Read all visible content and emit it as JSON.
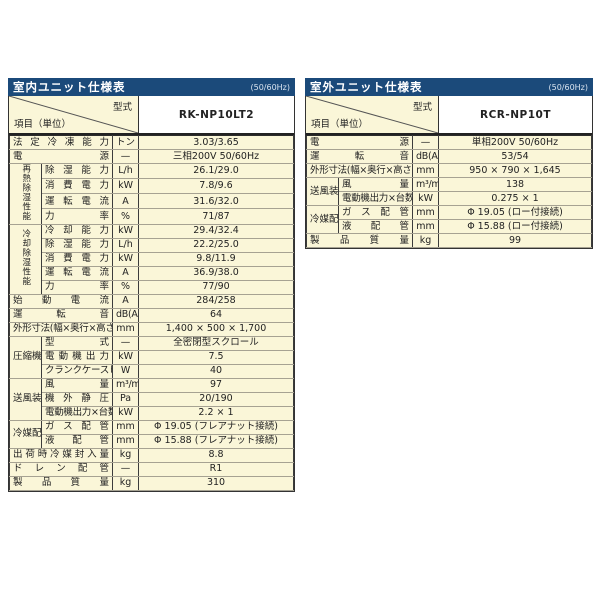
{
  "colors": {
    "header_bg": "#1b4a7a",
    "header_text": "#ffffff",
    "cell_bg": "#faf6d8",
    "value_bg": "#ffffff",
    "border_dark": "#333333"
  },
  "tables": [
    {
      "title": "室内ユニット仕様表",
      "freq": "(50/60Hz)",
      "model_label": "型式",
      "item_label": "項目（単位）",
      "model": "RK-NP10LT2",
      "rows": [
        {
          "label": "法定冷凍能力",
          "unit": "トン",
          "value": "3.03/3.65"
        },
        {
          "label": "電源",
          "unit": "—",
          "value": "三相200V 50/60Hz"
        },
        {
          "group": "再熱除湿性能",
          "gspan": 4,
          "gvert": true,
          "label": "除湿能力",
          "unit": "L/h",
          "value": "26.1/29.0"
        },
        {
          "label": "消費電力",
          "unit": "kW",
          "value": "7.8/9.6"
        },
        {
          "label": "運転電流",
          "unit": "A",
          "value": "31.6/32.0"
        },
        {
          "label": "力率",
          "unit": "%",
          "value": "71/87"
        },
        {
          "group": "冷却除湿性能",
          "gspan": 5,
          "gvert": true,
          "label": "冷却能力",
          "unit": "kW",
          "value": "29.4/32.4"
        },
        {
          "label": "除湿能力",
          "unit": "L/h",
          "value": "22.2/25.0"
        },
        {
          "label": "消費電力",
          "unit": "kW",
          "value": "9.8/11.9"
        },
        {
          "label": "運転電流",
          "unit": "A",
          "value": "36.9/38.0"
        },
        {
          "label": "力率",
          "unit": "%",
          "value": "77/90"
        },
        {
          "label": "始動電流",
          "unit": "A",
          "value": "284/258"
        },
        {
          "label": "運転音",
          "unit": "dB(A)",
          "value": "64"
        },
        {
          "label": "外形寸法(幅×奥行×高さ)",
          "fit": true,
          "unit": "mm",
          "value": "1,400 × 500 × 1,700"
        },
        {
          "group": "圧縮機",
          "gspan": 3,
          "label": "型式",
          "unit": "—",
          "value": "全密閉型スクロール"
        },
        {
          "label": "電動機出力",
          "unit": "kW",
          "value": "7.5"
        },
        {
          "label": "クランクケースヒーター",
          "fit": true,
          "unit": "W",
          "value": "40"
        },
        {
          "group": "送風装置",
          "gspan": 3,
          "label": "風量",
          "unit": "m³/min",
          "value": "97"
        },
        {
          "label": "機外静圧",
          "unit": "Pa",
          "value": "20/190"
        },
        {
          "label": "電動機出力×台数",
          "fit": true,
          "unit": "kW",
          "value": "2.2 × 1"
        },
        {
          "group": "冷媒配管",
          "gspan": 2,
          "label": "ガス配管",
          "unit": "mm",
          "value": "Φ 19.05 (フレアナット接続)"
        },
        {
          "label": "液配管",
          "unit": "mm",
          "value": "Φ 15.88 (フレアナット接続)"
        },
        {
          "label": "出荷時冷媒封入量",
          "unit": "kg",
          "value": "8.8"
        },
        {
          "label": "ドレン配管",
          "unit": "—",
          "value": "R1"
        },
        {
          "label": "製品質量",
          "unit": "kg",
          "value": "310"
        }
      ]
    },
    {
      "title": "室外ユニット仕様表",
      "freq": "(50/60Hz)",
      "model_label": "型式",
      "item_label": "項目（単位）",
      "model": "RCR-NP10T",
      "rows": [
        {
          "label": "電源",
          "unit": "—",
          "value": "単相200V 50/60Hz"
        },
        {
          "label": "運転音",
          "unit": "dB(A)",
          "value": "53/54"
        },
        {
          "label": "外形寸法(幅×奥行×高さ)",
          "fit": true,
          "unit": "mm",
          "value": "950 × 790 × 1,645"
        },
        {
          "group": "送風装置",
          "gspan": 2,
          "label": "風量",
          "unit": "m³/min",
          "value": "138"
        },
        {
          "label": "電動機出力×台数",
          "fit": true,
          "unit": "kW",
          "value": "0.275 × 1"
        },
        {
          "group": "冷媒配管",
          "gspan": 2,
          "label": "ガス配管",
          "unit": "mm",
          "value": "Φ 19.05 (ロー付接続)"
        },
        {
          "label": "液配管",
          "unit": "mm",
          "value": "Φ 15.88 (ロー付接続)"
        },
        {
          "label": "製品質量",
          "unit": "kg",
          "value": "99"
        }
      ]
    }
  ]
}
